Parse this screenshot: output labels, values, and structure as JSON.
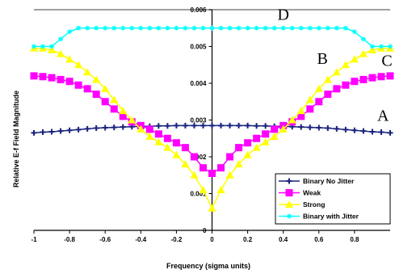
{
  "chart_data": {
    "type": "line",
    "xlabel": "Frequency (sigma units)",
    "ylabel": "Relative E-f Field Magnitude",
    "xlim": [
      -1,
      1
    ],
    "ylim": [
      0,
      0.006
    ],
    "x_ticks": [
      "-1",
      "-0.8",
      "-0.6",
      "-0.4",
      "-0.2",
      "0",
      "0.2",
      "0.4",
      "0.6",
      "0.8"
    ],
    "y_ticks": [
      "0",
      "0.001",
      "0.002",
      "0.003",
      "0.004",
      "0.005",
      "0.006"
    ],
    "x": [
      -1.0,
      -0.95,
      -0.9,
      -0.85,
      -0.8,
      -0.75,
      -0.7,
      -0.65,
      -0.6,
      -0.55,
      -0.5,
      -0.45,
      -0.4,
      -0.35,
      -0.3,
      -0.25,
      -0.2,
      -0.15,
      -0.1,
      -0.05,
      0.0,
      0.05,
      0.1,
      0.15,
      0.2,
      0.25,
      0.3,
      0.35,
      0.4,
      0.45,
      0.5,
      0.55,
      0.6,
      0.65,
      0.7,
      0.75,
      0.8,
      0.85,
      0.9,
      0.95,
      1.0
    ],
    "series": [
      {
        "name": "Binary No Jitter",
        "color": "#1a237e",
        "marker": "plus",
        "values": [
          0.00265,
          0.00267,
          0.00268,
          0.0027,
          0.00272,
          0.00274,
          0.00276,
          0.00278,
          0.00279,
          0.0028,
          0.00281,
          0.00282,
          0.00283,
          0.00283,
          0.00284,
          0.00284,
          0.00285,
          0.00285,
          0.00285,
          0.00285,
          0.00285,
          0.00285,
          0.00285,
          0.00285,
          0.00285,
          0.00284,
          0.00284,
          0.00283,
          0.00283,
          0.00282,
          0.00281,
          0.0028,
          0.00279,
          0.00278,
          0.00276,
          0.00274,
          0.00272,
          0.0027,
          0.00268,
          0.00267,
          0.00265
        ]
      },
      {
        "name": "Weak",
        "color": "#ff00ff",
        "marker": "square",
        "values": [
          0.0042,
          0.00418,
          0.00415,
          0.0041,
          0.00405,
          0.00395,
          0.00385,
          0.0037,
          0.0035,
          0.0033,
          0.0031,
          0.00295,
          0.00285,
          0.00275,
          0.00262,
          0.0025,
          0.00238,
          0.00225,
          0.002,
          0.0017,
          0.00155,
          0.0017,
          0.002,
          0.00225,
          0.00238,
          0.0025,
          0.00262,
          0.00275,
          0.00285,
          0.00295,
          0.0031,
          0.0033,
          0.0035,
          0.0037,
          0.00385,
          0.00395,
          0.00405,
          0.0041,
          0.00415,
          0.00418,
          0.0042
        ]
      },
      {
        "name": "Strong",
        "color": "#ffff00",
        "marker": "triangle",
        "values": [
          0.00495,
          0.00495,
          0.0049,
          0.0048,
          0.00465,
          0.0045,
          0.0043,
          0.0041,
          0.00385,
          0.00355,
          0.00325,
          0.003,
          0.00275,
          0.00255,
          0.0024,
          0.00225,
          0.00205,
          0.0018,
          0.0015,
          0.0011,
          0.0006,
          0.0011,
          0.0015,
          0.0018,
          0.00205,
          0.00225,
          0.0024,
          0.00255,
          0.00275,
          0.003,
          0.00325,
          0.00355,
          0.00385,
          0.0041,
          0.0043,
          0.0045,
          0.00465,
          0.0048,
          0.0049,
          0.00495,
          0.00495
        ]
      },
      {
        "name": "Binary with Jitter",
        "color": "#00ffff",
        "marker": "star",
        "values": [
          0.005,
          0.005,
          0.005,
          0.0052,
          0.0054,
          0.0055,
          0.0055,
          0.0055,
          0.0055,
          0.0055,
          0.0055,
          0.0055,
          0.0055,
          0.0055,
          0.0055,
          0.0055,
          0.0055,
          0.0055,
          0.0055,
          0.0055,
          0.0055,
          0.0055,
          0.0055,
          0.0055,
          0.0055,
          0.0055,
          0.0055,
          0.0055,
          0.0055,
          0.0055,
          0.0055,
          0.0055,
          0.0055,
          0.0055,
          0.0055,
          0.0055,
          0.0054,
          0.0052,
          0.005,
          0.005,
          0.005
        ]
      }
    ],
    "annotations": [
      {
        "text": "A",
        "x": 0.96,
        "y": 0.00298
      },
      {
        "text": "B",
        "x": 0.62,
        "y": 0.00453
      },
      {
        "text": "C",
        "x": 1.0,
        "y": 0.00447
      },
      {
        "text": "D",
        "x": 0.4,
        "y": 0.00573
      }
    ],
    "legend_placement": "lower-right",
    "grid": false
  }
}
